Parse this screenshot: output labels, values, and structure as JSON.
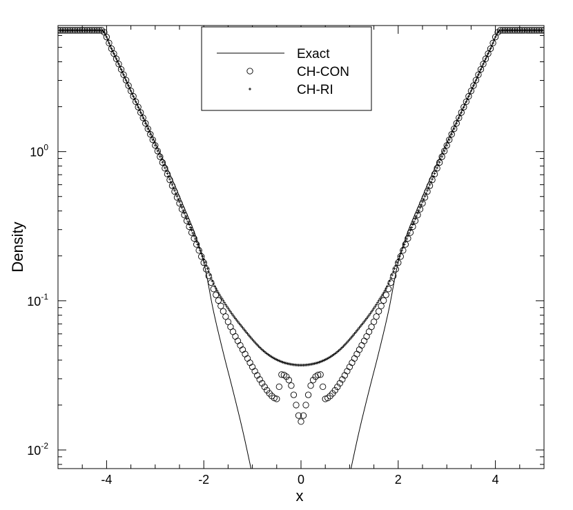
{
  "chart_data": {
    "type": "line",
    "xlabel": "x",
    "ylabel": "Density",
    "xlim": [
      -5,
      5
    ],
    "ylim": [
      0.0075,
      7.0
    ],
    "yscale": "log",
    "x_ticks": [
      "-4",
      "-2",
      "0",
      "2",
      "4"
    ],
    "x_tick_values": [
      -4,
      -2,
      0,
      2,
      4
    ],
    "y_ticks": [
      {
        "value": 1,
        "base": "10",
        "exp": "0"
      },
      {
        "value": 0.1,
        "base": "10",
        "exp": "-1"
      },
      {
        "value": 0.01,
        "base": "10",
        "exp": "-2"
      }
    ],
    "grid": false,
    "legend_position": "top-center",
    "series": [
      {
        "name": "Exact",
        "style": "line",
        "x": [
          -5,
          -4.1,
          -3.9,
          -3.5,
          -3.0,
          -2.5,
          -2.0,
          -1.8,
          -1.6,
          -1.4,
          -1.2,
          -1.0,
          1.0,
          1.2,
          1.4,
          1.6,
          1.8,
          2.0,
          2.5,
          3.0,
          3.5,
          3.9,
          4.1,
          5
        ],
        "y": [
          6.5,
          6.5,
          4.9,
          2.55,
          1.15,
          0.5,
          0.18,
          0.085,
          0.045,
          0.025,
          0.0135,
          0.0068,
          0.0068,
          0.0135,
          0.025,
          0.045,
          0.085,
          0.18,
          0.5,
          1.15,
          2.55,
          4.9,
          6.5,
          6.5
        ]
      },
      {
        "name": "CH-CON",
        "style": "circle",
        "x": [
          -5,
          -4.1,
          -3.9,
          -3.5,
          -3.0,
          -2.5,
          -2.0,
          -1.8,
          -1.6,
          -1.4,
          -1.2,
          -1.0,
          -0.8,
          -0.6,
          -0.5,
          -0.4,
          -0.3,
          -0.2,
          -0.1,
          0.0,
          0.1,
          0.2,
          0.3,
          0.4,
          0.5,
          0.6,
          0.8,
          1.0,
          1.2,
          1.4,
          1.6,
          1.8,
          2.0,
          2.5,
          3.0,
          3.5,
          3.9,
          4.1,
          5
        ],
        "y": [
          6.5,
          6.5,
          4.9,
          2.55,
          1.1,
          0.45,
          0.18,
          0.12,
          0.085,
          0.062,
          0.047,
          0.036,
          0.028,
          0.023,
          0.022,
          0.032,
          0.031,
          0.027,
          0.02,
          0.0155,
          0.02,
          0.027,
          0.031,
          0.032,
          0.022,
          0.023,
          0.028,
          0.036,
          0.047,
          0.062,
          0.085,
          0.12,
          0.18,
          0.45,
          1.1,
          2.55,
          4.9,
          6.5,
          6.5
        ]
      },
      {
        "name": "CH-RI",
        "style": "plus",
        "x": [
          -5,
          -4.1,
          -3.9,
          -3.5,
          -3.0,
          -2.5,
          -2.0,
          -1.8,
          -1.6,
          -1.4,
          -1.2,
          -1.0,
          -0.8,
          -0.6,
          -0.4,
          -0.2,
          0.0,
          0.2,
          0.4,
          0.6,
          0.8,
          1.0,
          1.2,
          1.4,
          1.6,
          1.8,
          2.0,
          2.5,
          3.0,
          3.5,
          3.9,
          4.1,
          5
        ],
        "y": [
          6.5,
          6.5,
          4.9,
          2.55,
          1.1,
          0.46,
          0.19,
          0.13,
          0.1,
          0.08,
          0.066,
          0.055,
          0.047,
          0.042,
          0.039,
          0.0375,
          0.037,
          0.0375,
          0.039,
          0.042,
          0.047,
          0.055,
          0.066,
          0.08,
          0.1,
          0.13,
          0.19,
          0.46,
          1.1,
          2.55,
          4.9,
          6.5,
          6.5
        ]
      }
    ]
  }
}
